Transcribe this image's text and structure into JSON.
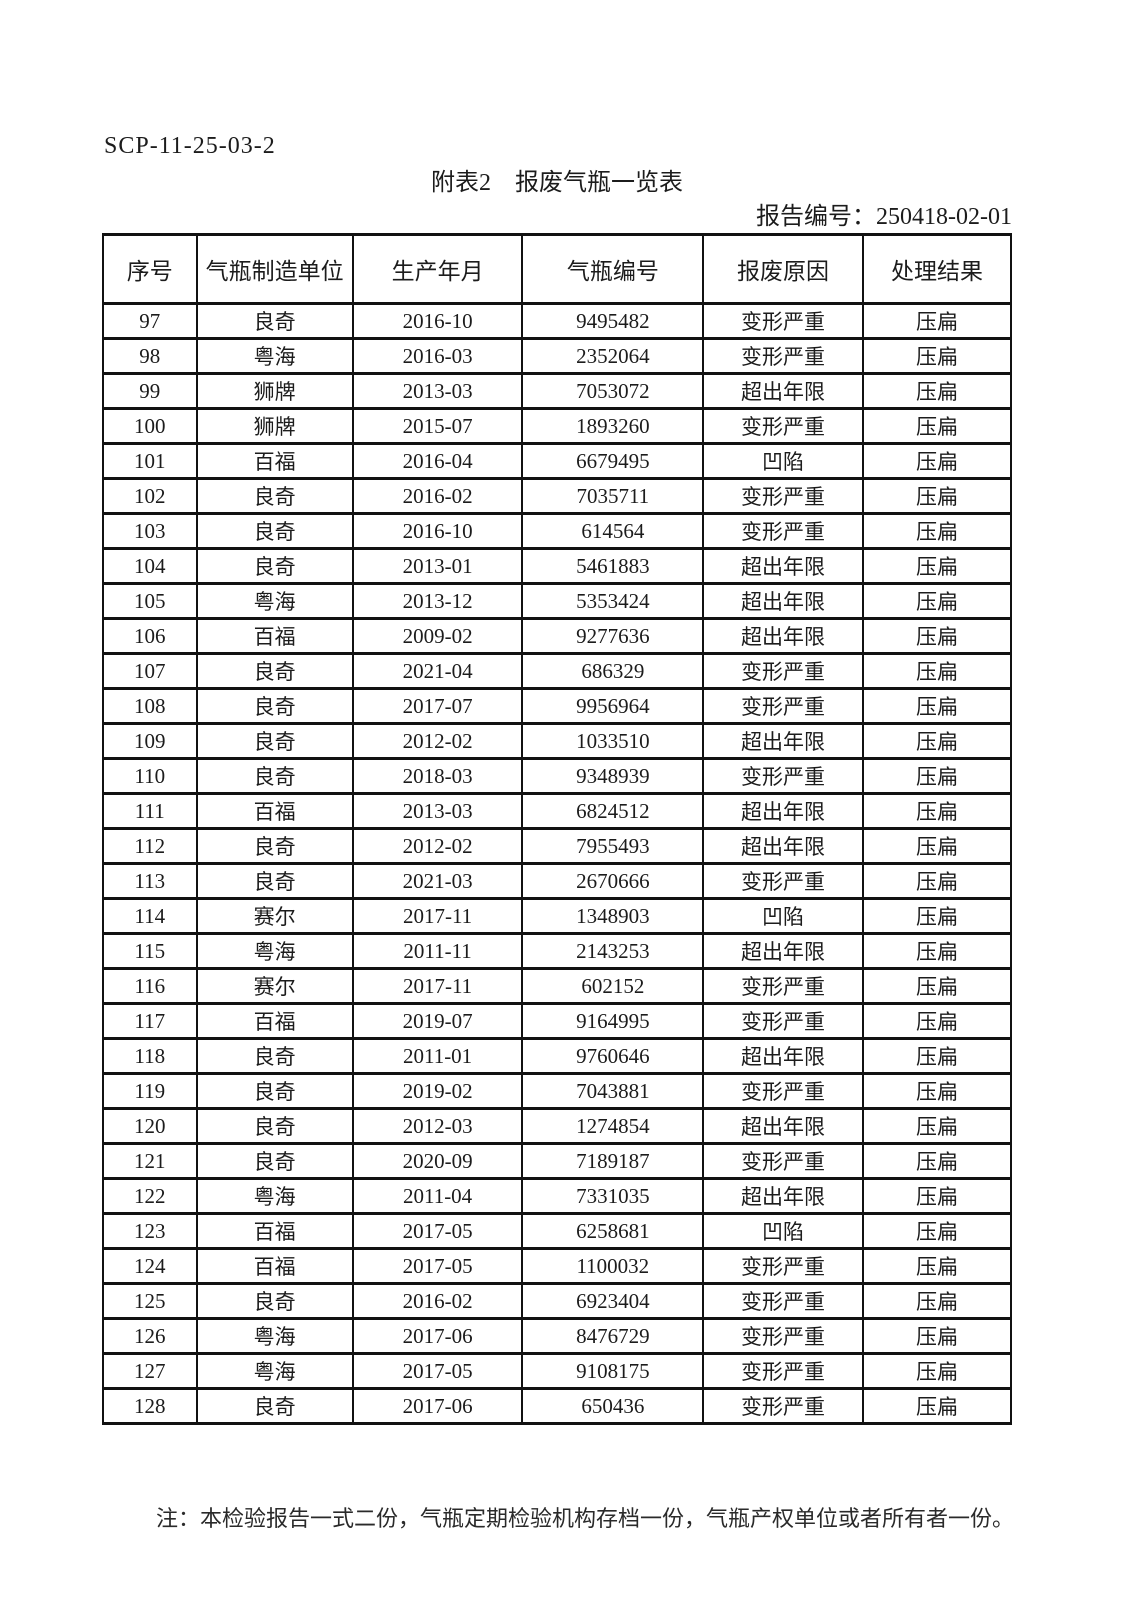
{
  "header": {
    "doc_code": "SCP-11-25-03-2",
    "title": "附表2　报废气瓶一览表",
    "report_no_label": "报告编号：",
    "report_no": "250418-02-01"
  },
  "table": {
    "columns": [
      "序号",
      "气瓶制造单位",
      "生产年月",
      "气瓶编号",
      "报废原因",
      "处理结果"
    ],
    "rows": [
      [
        "97",
        "良奇",
        "2016-10",
        "9495482",
        "变形严重",
        "压扁"
      ],
      [
        "98",
        "粤海",
        "2016-03",
        "2352064",
        "变形严重",
        "压扁"
      ],
      [
        "99",
        "狮牌",
        "2013-03",
        "7053072",
        "超出年限",
        "压扁"
      ],
      [
        "100",
        "狮牌",
        "2015-07",
        "1893260",
        "变形严重",
        "压扁"
      ],
      [
        "101",
        "百福",
        "2016-04",
        "6679495",
        "凹陷",
        "压扁"
      ],
      [
        "102",
        "良奇",
        "2016-02",
        "7035711",
        "变形严重",
        "压扁"
      ],
      [
        "103",
        "良奇",
        "2016-10",
        "614564",
        "变形严重",
        "压扁"
      ],
      [
        "104",
        "良奇",
        "2013-01",
        "5461883",
        "超出年限",
        "压扁"
      ],
      [
        "105",
        "粤海",
        "2013-12",
        "5353424",
        "超出年限",
        "压扁"
      ],
      [
        "106",
        "百福",
        "2009-02",
        "9277636",
        "超出年限",
        "压扁"
      ],
      [
        "107",
        "良奇",
        "2021-04",
        "686329",
        "变形严重",
        "压扁"
      ],
      [
        "108",
        "良奇",
        "2017-07",
        "9956964",
        "变形严重",
        "压扁"
      ],
      [
        "109",
        "良奇",
        "2012-02",
        "1033510",
        "超出年限",
        "压扁"
      ],
      [
        "110",
        "良奇",
        "2018-03",
        "9348939",
        "变形严重",
        "压扁"
      ],
      [
        "111",
        "百福",
        "2013-03",
        "6824512",
        "超出年限",
        "压扁"
      ],
      [
        "112",
        "良奇",
        "2012-02",
        "7955493",
        "超出年限",
        "压扁"
      ],
      [
        "113",
        "良奇",
        "2021-03",
        "2670666",
        "变形严重",
        "压扁"
      ],
      [
        "114",
        "赛尔",
        "2017-11",
        "1348903",
        "凹陷",
        "压扁"
      ],
      [
        "115",
        "粤海",
        "2011-11",
        "2143253",
        "超出年限",
        "压扁"
      ],
      [
        "116",
        "赛尔",
        "2017-11",
        "602152",
        "变形严重",
        "压扁"
      ],
      [
        "117",
        "百福",
        "2019-07",
        "9164995",
        "变形严重",
        "压扁"
      ],
      [
        "118",
        "良奇",
        "2011-01",
        "9760646",
        "超出年限",
        "压扁"
      ],
      [
        "119",
        "良奇",
        "2019-02",
        "7043881",
        "变形严重",
        "压扁"
      ],
      [
        "120",
        "良奇",
        "2012-03",
        "1274854",
        "超出年限",
        "压扁"
      ],
      [
        "121",
        "良奇",
        "2020-09",
        "7189187",
        "变形严重",
        "压扁"
      ],
      [
        "122",
        "粤海",
        "2011-04",
        "7331035",
        "超出年限",
        "压扁"
      ],
      [
        "123",
        "百福",
        "2017-05",
        "6258681",
        "凹陷",
        "压扁"
      ],
      [
        "124",
        "百福",
        "2017-05",
        "1100032",
        "变形严重",
        "压扁"
      ],
      [
        "125",
        "良奇",
        "2016-02",
        "6923404",
        "变形严重",
        "压扁"
      ],
      [
        "126",
        "粤海",
        "2017-06",
        "8476729",
        "变形严重",
        "压扁"
      ],
      [
        "127",
        "粤海",
        "2017-05",
        "9108175",
        "变形严重",
        "压扁"
      ],
      [
        "128",
        "良奇",
        "2017-06",
        "650436",
        "变形严重",
        "压扁"
      ]
    ]
  },
  "footer": {
    "note": "注：本检验报告一式二份，气瓶定期检验机构存档一份，气瓶产权单位或者所有者一份。"
  },
  "colors": {
    "text": "#1c1c1c",
    "border": "#111111",
    "background": "#ffffff"
  }
}
